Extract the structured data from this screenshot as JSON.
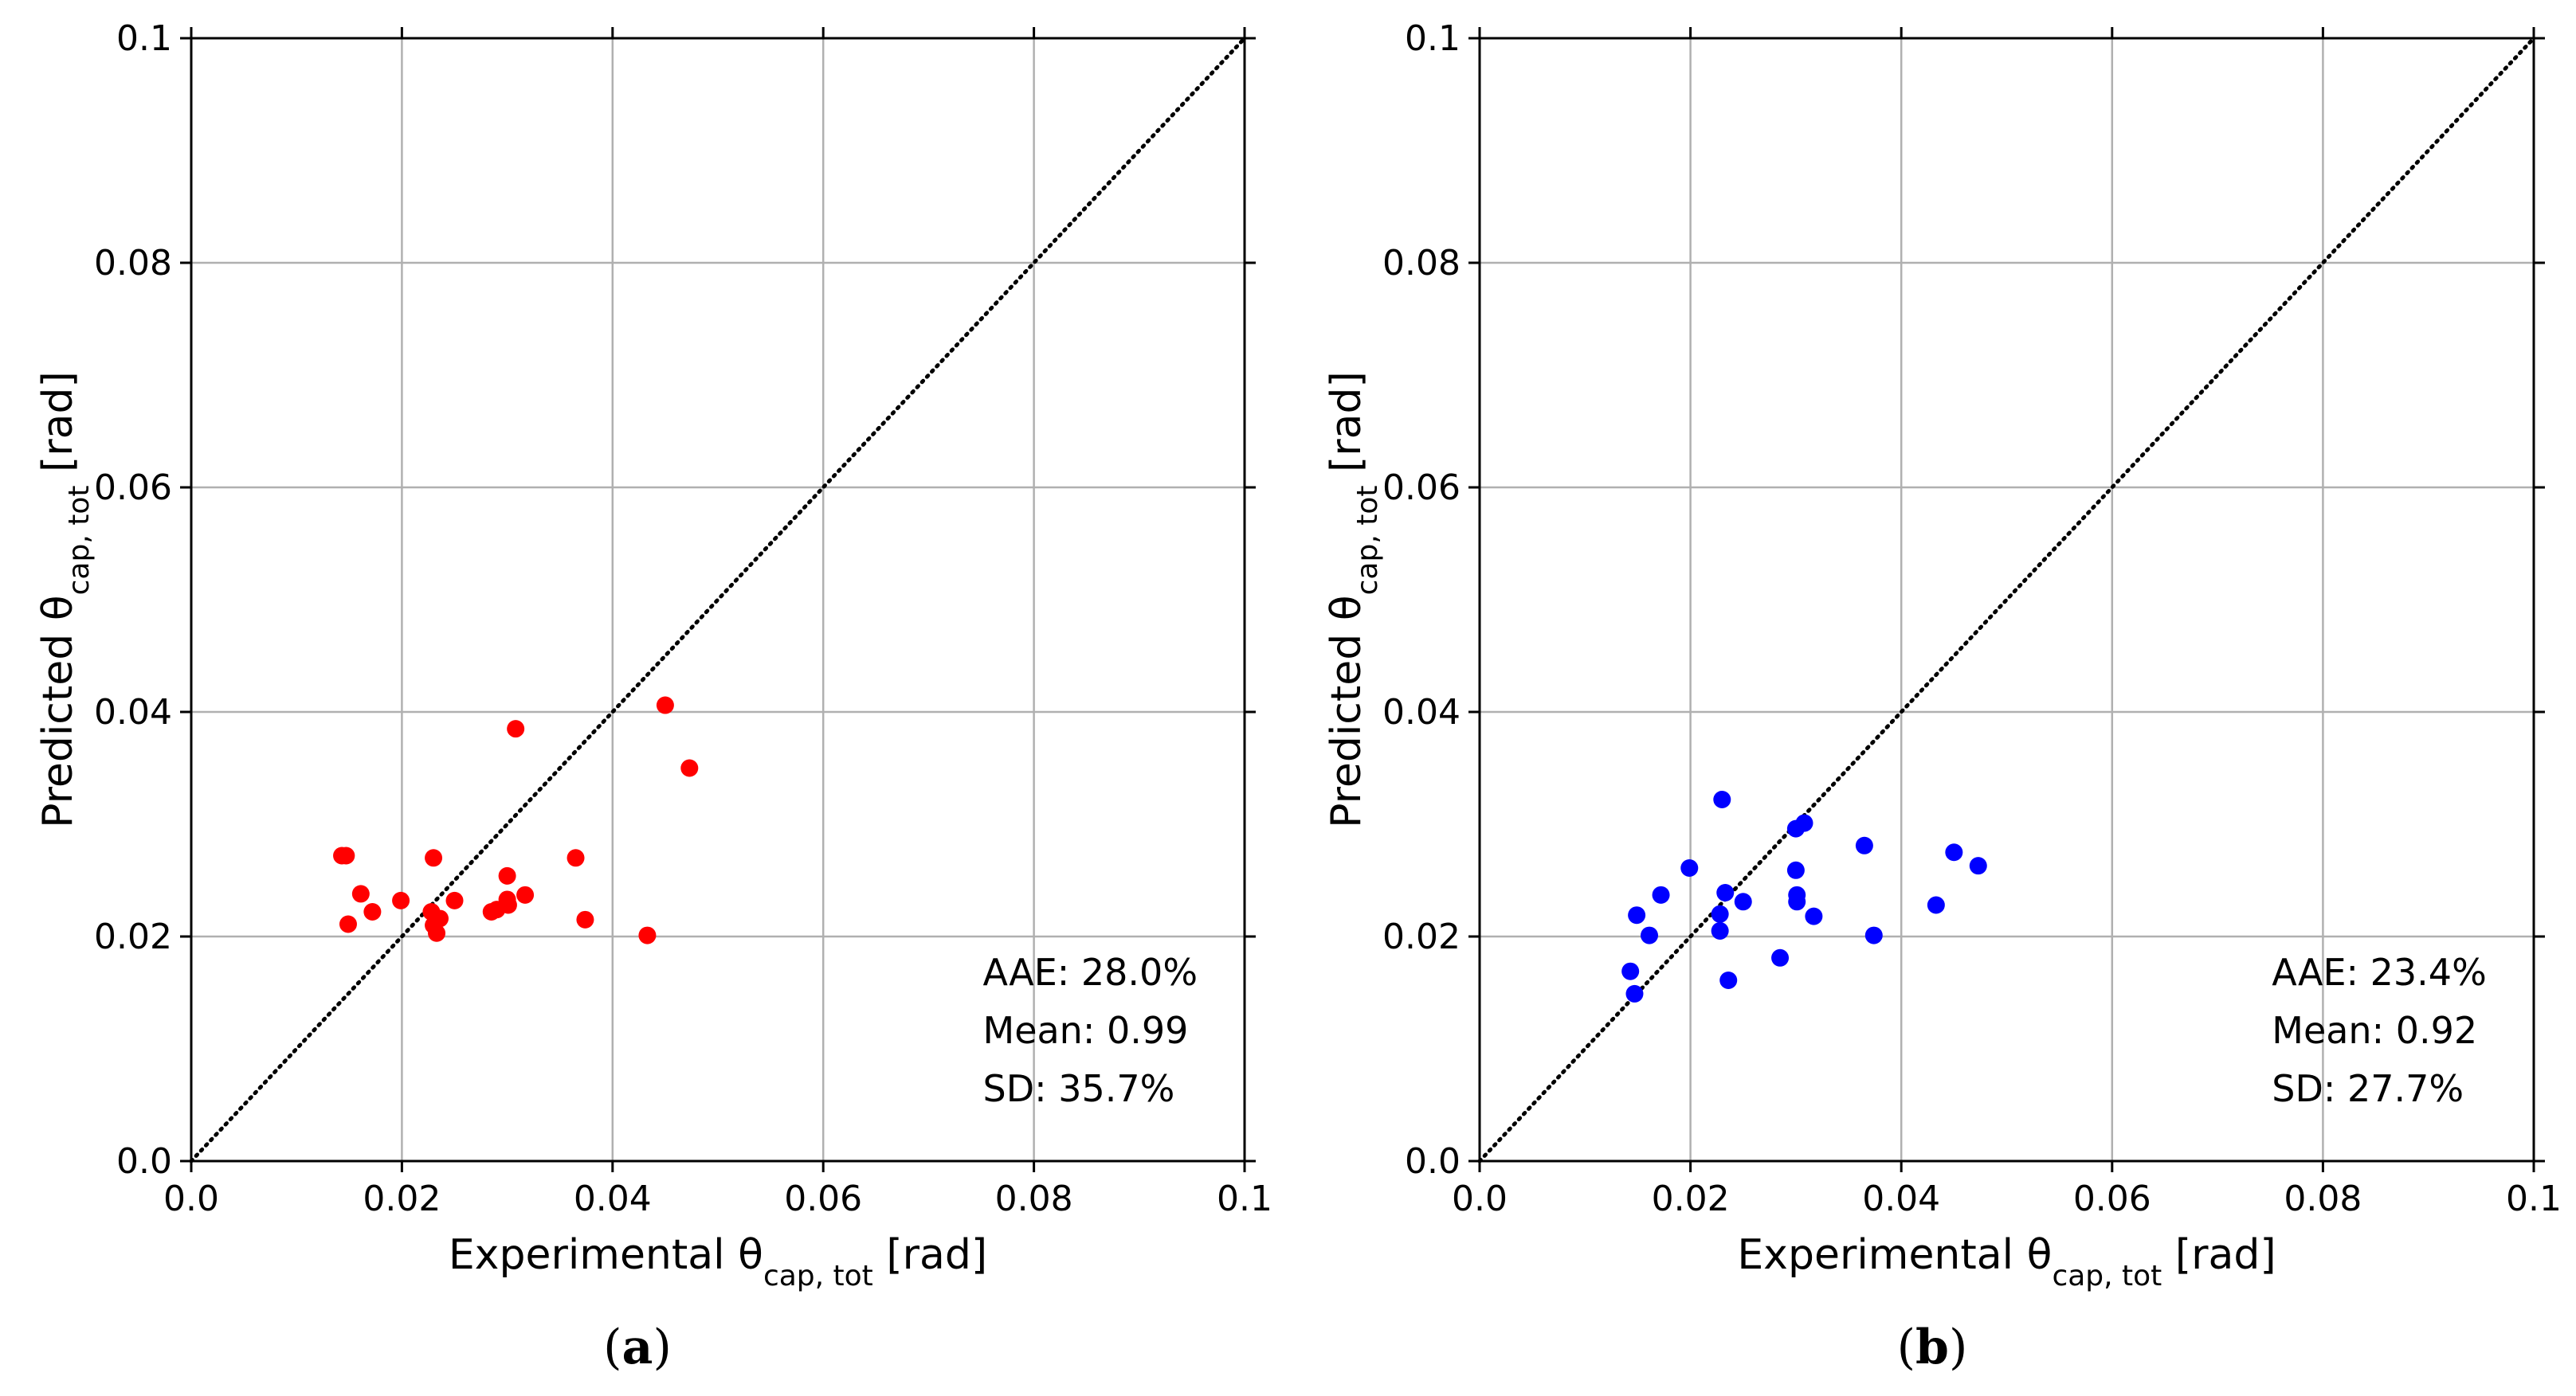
{
  "chart_data": [
    {
      "type": "scatter",
      "panel_label": "a",
      "xlabel": {
        "prefix": "Experimental θ",
        "sub": "cap, tot",
        "suffix": " [rad]"
      },
      "ylabel": {
        "prefix": "Predicted θ",
        "sub": "cap, tot",
        "suffix": " [rad]"
      },
      "xlim": [
        0,
        0.1
      ],
      "ylim": [
        0,
        0.1
      ],
      "xticks": [
        0,
        0.02,
        0.04,
        0.06,
        0.08,
        0.1
      ],
      "yticks": [
        0,
        0.02,
        0.04,
        0.06,
        0.08,
        0.1
      ],
      "xtick_labels": [
        "0.0",
        "0.02",
        "0.04",
        "0.06",
        "0.08",
        "0.1"
      ],
      "ytick_labels": [
        "0.0",
        "0.02",
        "0.04",
        "0.06",
        "0.08",
        "0.1"
      ],
      "grid": true,
      "reference_line": "y = x (dotted)",
      "marker_color": "#ff0000",
      "stats": [
        "AAE: 28.0%",
        "Mean: 0.99",
        "SD: 35.7%"
      ],
      "points": [
        [
          0.0143,
          0.0272
        ],
        [
          0.0147,
          0.0272
        ],
        [
          0.0149,
          0.0211
        ],
        [
          0.0161,
          0.0238
        ],
        [
          0.0172,
          0.0222
        ],
        [
          0.0199,
          0.0232
        ],
        [
          0.0228,
          0.0222
        ],
        [
          0.023,
          0.027
        ],
        [
          0.023,
          0.021
        ],
        [
          0.0233,
          0.0203
        ],
        [
          0.0236,
          0.0216
        ],
        [
          0.025,
          0.0232
        ],
        [
          0.0285,
          0.0222
        ],
        [
          0.029,
          0.0224
        ],
        [
          0.03,
          0.0254
        ],
        [
          0.03,
          0.0233
        ],
        [
          0.0301,
          0.0228
        ],
        [
          0.0308,
          0.0385
        ],
        [
          0.0317,
          0.0237
        ],
        [
          0.0365,
          0.027
        ],
        [
          0.0374,
          0.0215
        ],
        [
          0.0433,
          0.0201
        ],
        [
          0.045,
          0.0406
        ],
        [
          0.0473,
          0.035
        ]
      ]
    },
    {
      "type": "scatter",
      "panel_label": "b",
      "xlabel": {
        "prefix": "Experimental θ",
        "sub": "cap, tot",
        "suffix": " [rad]"
      },
      "ylabel": {
        "prefix": "Predicted θ",
        "sub": "cap, tot",
        "suffix": " [rad]"
      },
      "xlim": [
        0,
        0.1
      ],
      "ylim": [
        0,
        0.1
      ],
      "xticks": [
        0,
        0.02,
        0.04,
        0.06,
        0.08,
        0.1
      ],
      "yticks": [
        0,
        0.02,
        0.04,
        0.06,
        0.08,
        0.1
      ],
      "xtick_labels": [
        "0.0",
        "0.02",
        "0.04",
        "0.06",
        "0.08",
        "0.1"
      ],
      "ytick_labels": [
        "0.0",
        "0.02",
        "0.04",
        "0.06",
        "0.08",
        "0.1"
      ],
      "grid": true,
      "reference_line": "y = x (dotted)",
      "marker_color": "#0000ff",
      "stats": [
        "AAE: 23.4%",
        "Mean: 0.92",
        "SD: 27.7%"
      ],
      "points": [
        [
          0.0143,
          0.0169
        ],
        [
          0.0147,
          0.0149
        ],
        [
          0.0149,
          0.0219
        ],
        [
          0.0161,
          0.0201
        ],
        [
          0.0172,
          0.0237
        ],
        [
          0.0199,
          0.0261
        ],
        [
          0.0228,
          0.022
        ],
        [
          0.0228,
          0.0205
        ],
        [
          0.023,
          0.0322
        ],
        [
          0.0233,
          0.0239
        ],
        [
          0.0236,
          0.0161
        ],
        [
          0.025,
          0.0231
        ],
        [
          0.0285,
          0.0181
        ],
        [
          0.03,
          0.0296
        ],
        [
          0.03,
          0.0259
        ],
        [
          0.0301,
          0.0237
        ],
        [
          0.0301,
          0.0231
        ],
        [
          0.0308,
          0.0301
        ],
        [
          0.0317,
          0.0218
        ],
        [
          0.0365,
          0.0281
        ],
        [
          0.0374,
          0.0201
        ],
        [
          0.0433,
          0.0228
        ],
        [
          0.045,
          0.0275
        ],
        [
          0.0473,
          0.0263
        ]
      ]
    }
  ]
}
